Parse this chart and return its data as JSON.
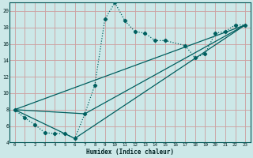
{
  "xlabel": "Humidex (Indice chaleur)",
  "bg_color": "#cce8e8",
  "grid_color_major": "#b8d4d4",
  "grid_color_minor": "#d8ecec",
  "line_color": "#005f5f",
  "xlim": [
    -0.5,
    23.5
  ],
  "ylim": [
    4,
    21
  ],
  "xticks": [
    0,
    1,
    2,
    3,
    4,
    5,
    6,
    7,
    8,
    9,
    10,
    11,
    12,
    13,
    14,
    15,
    16,
    17,
    18,
    19,
    20,
    21,
    22,
    23
  ],
  "yticks": [
    4,
    6,
    8,
    10,
    12,
    14,
    16,
    18,
    20
  ],
  "series1_x": [
    0,
    1,
    2,
    3,
    4,
    5,
    6,
    7,
    8,
    9,
    10,
    11,
    12,
    13,
    14,
    15,
    17,
    18,
    19,
    20,
    21,
    22,
    23
  ],
  "series1_y": [
    8,
    7,
    6.2,
    5.2,
    5.1,
    5.1,
    4.5,
    7.5,
    11,
    19,
    21,
    18.8,
    17.5,
    17.3,
    16.4,
    16.4,
    15.8,
    14.3,
    14.8,
    17.3,
    17.5,
    18.3,
    18.3
  ],
  "series2_x": [
    0,
    23
  ],
  "series2_y": [
    8,
    18.3
  ],
  "series3_x": [
    0,
    7,
    23
  ],
  "series3_y": [
    8,
    7.5,
    18.3
  ],
  "series4_x": [
    0,
    6,
    23
  ],
  "series4_y": [
    8,
    4.5,
    18.3
  ]
}
